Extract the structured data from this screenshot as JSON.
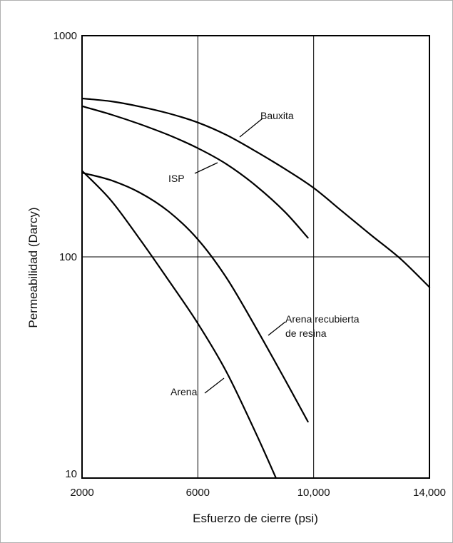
{
  "chart_data": {
    "type": "line",
    "title": "",
    "xlabel": "Esfuerzo de cierre (psi)",
    "ylabel": "Permeabilidad (Darcy)",
    "xlim": [
      2000,
      14000
    ],
    "ylim": [
      10,
      1000
    ],
    "yscale": "log",
    "grid": true,
    "legend": "none",
    "x_ticks": [
      2000,
      6000,
      10000,
      14000
    ],
    "x_tick_labels": [
      "2000",
      "6000",
      "10,000",
      "14,000"
    ],
    "y_ticks": [
      10,
      100,
      1000
    ],
    "y_tick_labels": [
      "10",
      "100",
      "1000"
    ],
    "series": [
      {
        "name": "Bauxita",
        "label_lines": [
          "Bauxita"
        ],
        "x": [
          2000,
          3000,
          4000,
          5000,
          6000,
          7000,
          8000,
          9000,
          10000,
          11000,
          12000,
          13000,
          14000
        ],
        "y": [
          520,
          505,
          478,
          445,
          405,
          355,
          300,
          250,
          205,
          160,
          125,
          98,
          73
        ]
      },
      {
        "name": "ISP",
        "label_lines": [
          "ISP"
        ],
        "x": [
          2000,
          3000,
          4000,
          5000,
          6000,
          7000,
          8000,
          9000,
          9800
        ],
        "y": [
          480,
          440,
          398,
          355,
          310,
          262,
          210,
          160,
          122
        ]
      },
      {
        "name": "Arena recubierta de resina",
        "label_lines": [
          "Arena recubierta",
          "de resina"
        ],
        "x": [
          2000,
          3000,
          4000,
          5000,
          6000,
          7000,
          8000,
          9000,
          9800
        ],
        "y": [
          240,
          222,
          195,
          160,
          120,
          80,
          48,
          28,
          18
        ]
      },
      {
        "name": "Arena",
        "label_lines": [
          "Arena"
        ],
        "x": [
          2000,
          3000,
          4000,
          5000,
          6000,
          7000,
          8000,
          8700
        ],
        "y": [
          245,
          180,
          120,
          78,
          50,
          30,
          16,
          10
        ]
      }
    ]
  }
}
